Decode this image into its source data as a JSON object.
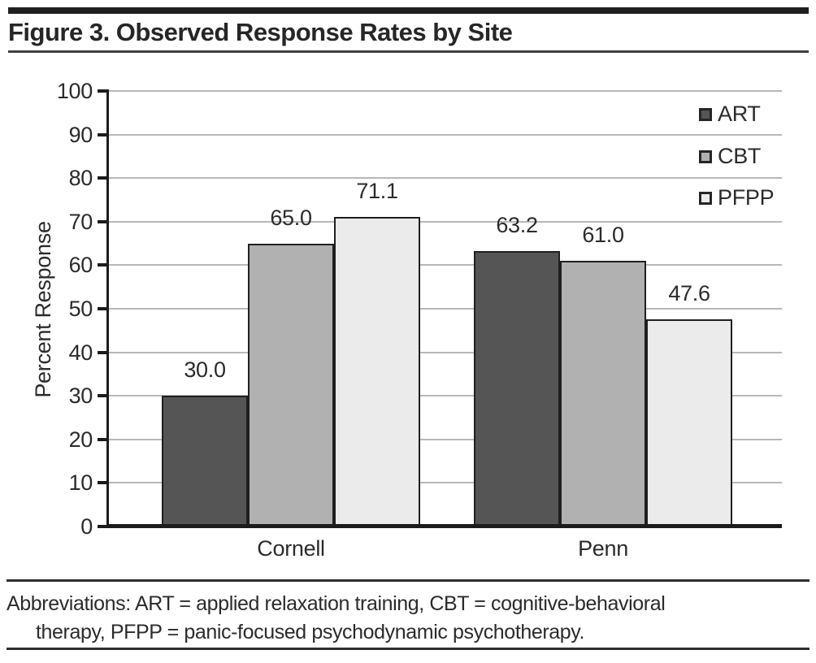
{
  "figure": {
    "title": "Figure 3. Observed Response Rates by Site"
  },
  "chart_data": {
    "type": "bar",
    "title": "Figure 3. Observed Response Rates by Site",
    "categories": [
      "Cornell",
      "Penn"
    ],
    "series": [
      {
        "name": "ART",
        "values": [
          30.0,
          63.2
        ],
        "color": "#555555"
      },
      {
        "name": "CBT",
        "values": [
          65.0,
          61.0
        ],
        "color": "#b1b1b1"
      },
      {
        "name": "PFPP",
        "values": [
          71.1,
          47.6
        ],
        "color": "#ebebeb"
      }
    ],
    "xlabel": "",
    "ylabel": "Percent Response",
    "ylim": [
      0,
      100
    ],
    "ytick_interval": 10,
    "grid": true,
    "legend_position": "top-right",
    "bar_border_color": "#1f1f1f",
    "gridline_color": "#b8b8b8",
    "axis_color": "#1c1c1c"
  },
  "footer": {
    "line1": "Abbreviations: ART = applied relaxation training, CBT = cognitive-behavioral",
    "line2": "therapy, PFPP = panic-focused psychodynamic psychotherapy."
  }
}
